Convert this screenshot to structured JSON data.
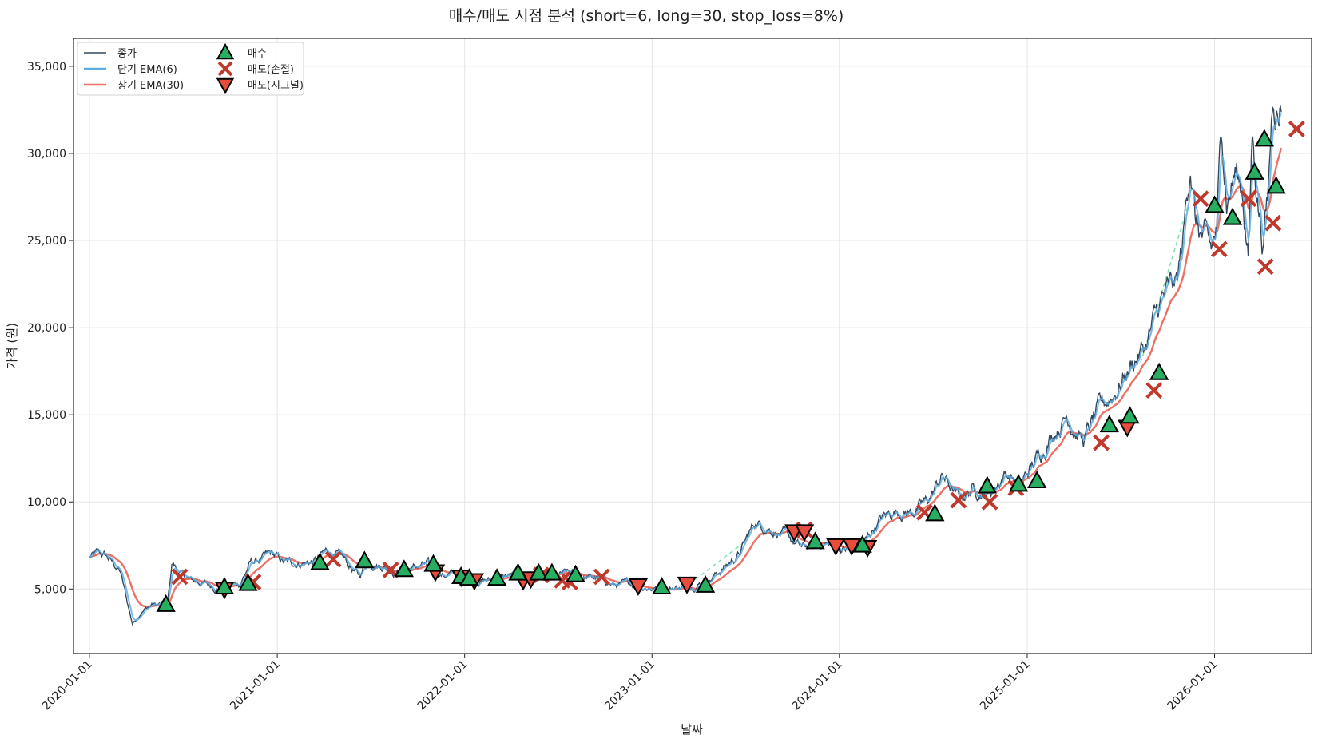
{
  "chart_data": {
    "type": "line",
    "title": "매수/매도 시점 분석 (short=6, long=30, stop_loss=8%)",
    "xlabel": "날짜",
    "ylabel": "가격 (원)",
    "xlim": [
      "2019-12-01",
      "2026-07-09"
    ],
    "ylim": [
      1300,
      36600
    ],
    "x_ticks": [
      "2020-01-01",
      "2021-01-01",
      "2022-01-01",
      "2023-01-01",
      "2024-01-01",
      "2025-01-01",
      "2026-01-01"
    ],
    "y_ticks": [
      5000,
      10000,
      15000,
      20000,
      25000,
      30000,
      35000
    ],
    "y_tick_labels": [
      "5,000",
      "10,000",
      "15,000",
      "20,000",
      "25,000",
      "30,000",
      "35,000"
    ],
    "grid": true,
    "legend_position": "top-left",
    "colors": {
      "close": "#34495e",
      "short_ema": "#5dade2",
      "long_ema": "#ec7063",
      "buy": "#27ae60",
      "sell_stop": "#c0392b",
      "sell_signal": "#e74c3c",
      "trend_dash": "#82e0aa"
    },
    "legend": [
      {
        "key": "close",
        "label": "종가",
        "kind": "line"
      },
      {
        "key": "short_ema",
        "label": "단기 EMA(6)",
        "kind": "line"
      },
      {
        "key": "long_ema",
        "label": "장기 EMA(30)",
        "kind": "line"
      },
      {
        "key": "buy",
        "label": "매수",
        "kind": "triangle-up"
      },
      {
        "key": "sell_stop",
        "label": "매도(손절)",
        "kind": "x"
      },
      {
        "key": "sell_signal",
        "label": "매도(시그널)",
        "kind": "triangle-down"
      }
    ],
    "close_anchors": [
      [
        "2020-01-01",
        6800
      ],
      [
        "2020-01-15",
        7000
      ],
      [
        "2020-02-01",
        6900
      ],
      [
        "2020-02-15",
        6500
      ],
      [
        "2020-03-01",
        6000
      ],
      [
        "2020-03-15",
        4200
      ],
      [
        "2020-03-25",
        3000
      ],
      [
        "2020-04-10",
        3700
      ],
      [
        "2020-05-01",
        4100
      ],
      [
        "2020-05-25",
        4100
      ],
      [
        "2020-06-01",
        4100
      ],
      [
        "2020-06-10",
        6500
      ],
      [
        "2020-06-25",
        5900
      ],
      [
        "2020-07-15",
        5500
      ],
      [
        "2020-08-15",
        5300
      ],
      [
        "2020-09-10",
        5000
      ],
      [
        "2020-10-01",
        5200
      ],
      [
        "2020-10-20",
        5300
      ],
      [
        "2020-11-10",
        6500
      ],
      [
        "2020-12-01",
        6700
      ],
      [
        "2020-12-20",
        7000
      ],
      [
        "2021-01-15",
        6500
      ],
      [
        "2021-02-15",
        6500
      ],
      [
        "2021-03-15",
        6600
      ],
      [
        "2021-04-10",
        7200
      ],
      [
        "2021-05-10",
        6700
      ],
      [
        "2021-06-10",
        5700
      ],
      [
        "2021-06-25",
        6600
      ],
      [
        "2021-07-20",
        6400
      ],
      [
        "2021-08-20",
        6000
      ],
      [
        "2021-09-20",
        6200
      ],
      [
        "2021-10-20",
        6400
      ],
      [
        "2021-11-20",
        5800
      ],
      [
        "2021-12-20",
        5900
      ],
      [
        "2022-01-20",
        5500
      ],
      [
        "2022-02-20",
        5500
      ],
      [
        "2022-03-20",
        5700
      ],
      [
        "2022-04-20",
        5900
      ],
      [
        "2022-05-20",
        5800
      ],
      [
        "2022-06-20",
        5600
      ],
      [
        "2022-07-20",
        5900
      ],
      [
        "2022-08-20",
        5700
      ],
      [
        "2022-09-20",
        5600
      ],
      [
        "2022-10-20",
        5200
      ],
      [
        "2022-11-20",
        5300
      ],
      [
        "2022-12-20",
        5100
      ],
      [
        "2023-01-20",
        5000
      ],
      [
        "2023-02-20",
        5100
      ],
      [
        "2023-03-20",
        5200
      ],
      [
        "2023-04-20",
        5500
      ],
      [
        "2023-05-20",
        6200
      ],
      [
        "2023-06-20",
        7000
      ],
      [
        "2023-07-20",
        8800
      ],
      [
        "2023-08-20",
        8500
      ],
      [
        "2023-09-20",
        8000
      ],
      [
        "2023-10-20",
        7300
      ],
      [
        "2023-11-20",
        7700
      ],
      [
        "2023-12-20",
        7500
      ],
      [
        "2024-01-20",
        7200
      ],
      [
        "2024-02-20",
        7700
      ],
      [
        "2024-03-20",
        9000
      ],
      [
        "2024-04-20",
        9500
      ],
      [
        "2024-05-20",
        9400
      ],
      [
        "2024-06-20",
        10000
      ],
      [
        "2024-07-20",
        11500
      ],
      [
        "2024-08-20",
        10200
      ],
      [
        "2024-09-20",
        10800
      ],
      [
        "2024-10-20",
        10500
      ],
      [
        "2024-11-20",
        11700
      ],
      [
        "2024-12-20",
        11000
      ],
      [
        "2025-01-20",
        12500
      ],
      [
        "2025-02-20",
        14000
      ],
      [
        "2025-03-20",
        15000
      ],
      [
        "2025-04-20",
        13500
      ],
      [
        "2025-05-20",
        15200
      ],
      [
        "2025-06-20",
        16300
      ],
      [
        "2025-07-20",
        17800
      ],
      [
        "2025-08-20",
        19000
      ],
      [
        "2025-09-20",
        21500
      ],
      [
        "2025-10-20",
        22500
      ],
      [
        "2025-11-01",
        25000
      ],
      [
        "2025-11-15",
        30000
      ],
      [
        "2025-11-25",
        26000
      ],
      [
        "2025-12-10",
        25000
      ],
      [
        "2025-12-25",
        24200
      ],
      [
        "2026-01-05",
        25500
      ],
      [
        "2026-01-15",
        31500
      ],
      [
        "2026-01-25",
        27500
      ],
      [
        "2026-02-10",
        29000
      ],
      [
        "2026-02-25",
        27800
      ],
      [
        "2026-03-08",
        24000
      ],
      [
        "2026-03-15",
        31000
      ],
      [
        "2026-03-25",
        28000
      ],
      [
        "2026-04-05",
        25000
      ],
      [
        "2026-04-15",
        27500
      ],
      [
        "2026-04-25",
        34000
      ],
      [
        "2026-05-05",
        32500
      ],
      [
        "2026-05-12",
        33500
      ]
    ],
    "buys": [
      [
        "2020-05-29",
        4100
      ],
      [
        "2020-09-20",
        5100
      ],
      [
        "2020-11-05",
        5300
      ],
      [
        "2021-03-25",
        6500
      ],
      [
        "2021-06-20",
        6600
      ],
      [
        "2021-09-05",
        6100
      ],
      [
        "2021-11-01",
        6400
      ],
      [
        "2021-12-25",
        5700
      ],
      [
        "2022-01-10",
        5600
      ],
      [
        "2022-03-05",
        5600
      ],
      [
        "2022-04-15",
        5900
      ],
      [
        "2022-05-25",
        5900
      ],
      [
        "2022-06-20",
        5900
      ],
      [
        "2022-08-05",
        5800
      ],
      [
        "2023-01-20",
        5100
      ],
      [
        "2023-04-15",
        5200
      ],
      [
        "2023-11-15",
        7700
      ],
      [
        "2024-02-15",
        7500
      ],
      [
        "2024-07-05",
        9300
      ],
      [
        "2024-10-15",
        10900
      ],
      [
        "2024-12-15",
        11000
      ],
      [
        "2025-01-20",
        11200
      ],
      [
        "2025-06-10",
        14400
      ],
      [
        "2025-07-20",
        14900
      ],
      [
        "2025-09-15",
        17400
      ],
      [
        "2026-01-01",
        27000
      ],
      [
        "2026-02-05",
        26300
      ],
      [
        "2026-03-20",
        28900
      ],
      [
        "2026-04-08",
        30800
      ],
      [
        "2026-05-01",
        28100
      ]
    ],
    "sells_stop": [
      [
        "2020-06-25",
        5700
      ],
      [
        "2020-11-15",
        5400
      ],
      [
        "2021-04-20",
        6700
      ],
      [
        "2021-08-10",
        6100
      ],
      [
        "2022-05-30",
        5800
      ],
      [
        "2022-07-10",
        5500
      ],
      [
        "2022-07-25",
        5400
      ],
      [
        "2022-09-25",
        5700
      ],
      [
        "2023-10-25",
        8400
      ],
      [
        "2024-06-15",
        9400
      ],
      [
        "2024-08-20",
        10100
      ],
      [
        "2024-10-20",
        10000
      ],
      [
        "2024-12-10",
        10800
      ],
      [
        "2025-05-25",
        13400
      ],
      [
        "2025-09-05",
        16400
      ],
      [
        "2025-12-05",
        27400
      ],
      [
        "2026-01-10",
        24500
      ],
      [
        "2026-03-08",
        27400
      ],
      [
        "2026-04-10",
        23500
      ],
      [
        "2026-04-25",
        26000
      ],
      [
        "2026-06-10",
        31400
      ]
    ],
    "sells_signal": [
      [
        "2020-09-20",
        5000
      ],
      [
        "2021-11-05",
        6000
      ],
      [
        "2021-12-25",
        5700
      ],
      [
        "2022-01-20",
        5500
      ],
      [
        "2022-04-25",
        5500
      ],
      [
        "2022-05-10",
        5600
      ],
      [
        "2022-12-05",
        5200
      ],
      [
        "2023-03-10",
        5300
      ],
      [
        "2023-10-05",
        8300
      ],
      [
        "2023-10-25",
        8300
      ],
      [
        "2023-12-25",
        7500
      ],
      [
        "2024-01-25",
        7500
      ],
      [
        "2024-02-25",
        7400
      ],
      [
        "2025-07-15",
        14300
      ]
    ]
  }
}
